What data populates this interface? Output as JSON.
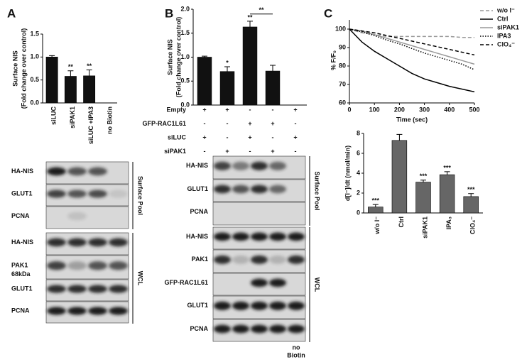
{
  "panels": [
    "A",
    "B",
    "C"
  ],
  "chart_data": [
    {
      "type": "bar",
      "ylabel": [
        "Surface NIS",
        "(Fold change over control)"
      ],
      "categories": [
        "siLUC",
        "siPAK1",
        "siLUC +IPA3",
        "no Biotin"
      ],
      "values": [
        1.0,
        0.58,
        0.59,
        null
      ],
      "errors": [
        0.03,
        0.12,
        0.13,
        null
      ],
      "significance": [
        null,
        "**",
        "**",
        null
      ],
      "color": "#111111",
      "ylim": [
        0,
        1.5
      ],
      "yticks": [
        {
          "value": 0,
          "label": "0.0"
        },
        {
          "value": 0.5,
          "label": "0.5"
        },
        {
          "value": 1,
          "label": "1.0"
        },
        {
          "value": 1.5,
          "label": "1.5"
        }
      ]
    },
    {
      "type": "bar",
      "ylabel": [
        "Surface NIS",
        "(Fold change over control)"
      ],
      "values": [
        1.0,
        0.7,
        1.63,
        0.71,
        null
      ],
      "errors": [
        0.02,
        0.1,
        0.12,
        0.12,
        null
      ],
      "significance": [
        null,
        "*",
        "**",
        null,
        null
      ],
      "bracket": "**",
      "color": "#111111",
      "ylim": [
        0,
        2
      ],
      "yticks": [
        {
          "value": 0,
          "label": "0.0"
        },
        {
          "value": 0.5,
          "label": "0.5"
        },
        {
          "value": 1,
          "label": "1.0"
        },
        {
          "value": 1.5,
          "label": "1.5"
        },
        {
          "value": 2,
          "label": "2.0"
        }
      ],
      "treatments": [
        {
          "label": "Empty",
          "signs": [
            "+",
            "+",
            "-",
            "-",
            "+"
          ]
        },
        {
          "label": "GFP-RAC1L61",
          "signs": [
            "-",
            "-",
            "+",
            "+",
            "-"
          ]
        },
        {
          "label": "siLUC",
          "signs": [
            "+",
            "-",
            "+",
            "-",
            "+"
          ]
        },
        {
          "label": "siPAK1",
          "signs": [
            "-",
            "+",
            "-",
            "+",
            "-"
          ]
        }
      ]
    },
    {
      "type": "line",
      "xlabel": "Time (sec)",
      "ylabel": "% F/F₀",
      "x": [
        0,
        50,
        100,
        150,
        200,
        250,
        300,
        350,
        400,
        450,
        500
      ],
      "series": [
        {
          "name": "w/o I⁻",
          "color": "#999999",
          "style": "dashed",
          "values": [
            100,
            98,
            97,
            96,
            96,
            96,
            96,
            96,
            96,
            95.5,
            95.5
          ]
        },
        {
          "name": "Ctrl",
          "color": "#000000",
          "style": "solid",
          "values": [
            100,
            93,
            88,
            84,
            80,
            76,
            73,
            71,
            69,
            67.5,
            66
          ]
        },
        {
          "name": "siPAK1",
          "color": "#999999",
          "style": "solid",
          "values": [
            100,
            99,
            97,
            95,
            93,
            91,
            89,
            87,
            85,
            83,
            81
          ]
        },
        {
          "name": "IPA3",
          "color": "#000000",
          "style": "dotted",
          "values": [
            100,
            98.5,
            96.5,
            94,
            92,
            89.5,
            87,
            85,
            83,
            81,
            78
          ]
        },
        {
          "name": "ClO₄⁻",
          "color": "#000000",
          "style": "dashed",
          "values": [
            100,
            99,
            98,
            96.5,
            95,
            93.5,
            92,
            90.5,
            89,
            87.5,
            86
          ]
        }
      ],
      "xlim": [
        0,
        500
      ],
      "xticks": [
        0,
        100,
        200,
        300,
        400,
        500
      ],
      "ylim": [
        60,
        105
      ],
      "yticks": [
        60,
        70,
        80,
        90,
        100
      ]
    },
    {
      "type": "bar",
      "ylabel": "d[I⁻]/dt (nmol/min)",
      "categories": [
        "w/o I⁻",
        "Ctrl",
        "siPAK1",
        "IPA₃",
        "ClO₄⁻"
      ],
      "values": [
        0.6,
        7.3,
        3.1,
        3.85,
        1.65
      ],
      "errors": [
        0.25,
        0.6,
        0.2,
        0.3,
        0.3
      ],
      "significance": [
        "***",
        null,
        "***",
        "***",
        "***"
      ],
      "color": "#666666",
      "ylim": [
        0,
        8
      ],
      "yticks": [
        0,
        2,
        4,
        6,
        8
      ]
    }
  ],
  "blots": {
    "A": {
      "surface_label": "Surface Pool",
      "wcl_label": "WCL",
      "surface_rows": [
        "HA-NIS",
        "GLUT1",
        "PCNA"
      ],
      "wcl_rows": [
        "HA-NIS",
        "PAK1",
        "GLUT1",
        "PCNA"
      ],
      "marker": "68kDa"
    },
    "B": {
      "surface_label": "Surface Pool",
      "wcl_label": "WCL",
      "surface_rows": [
        "HA-NIS",
        "GLUT1",
        "PCNA"
      ],
      "wcl_rows": [
        "HA-NIS",
        "PAK1",
        "GFP-RAC1L61",
        "GLUT1",
        "PCNA"
      ],
      "no_biotin": [
        "no",
        "Biotin"
      ]
    }
  }
}
